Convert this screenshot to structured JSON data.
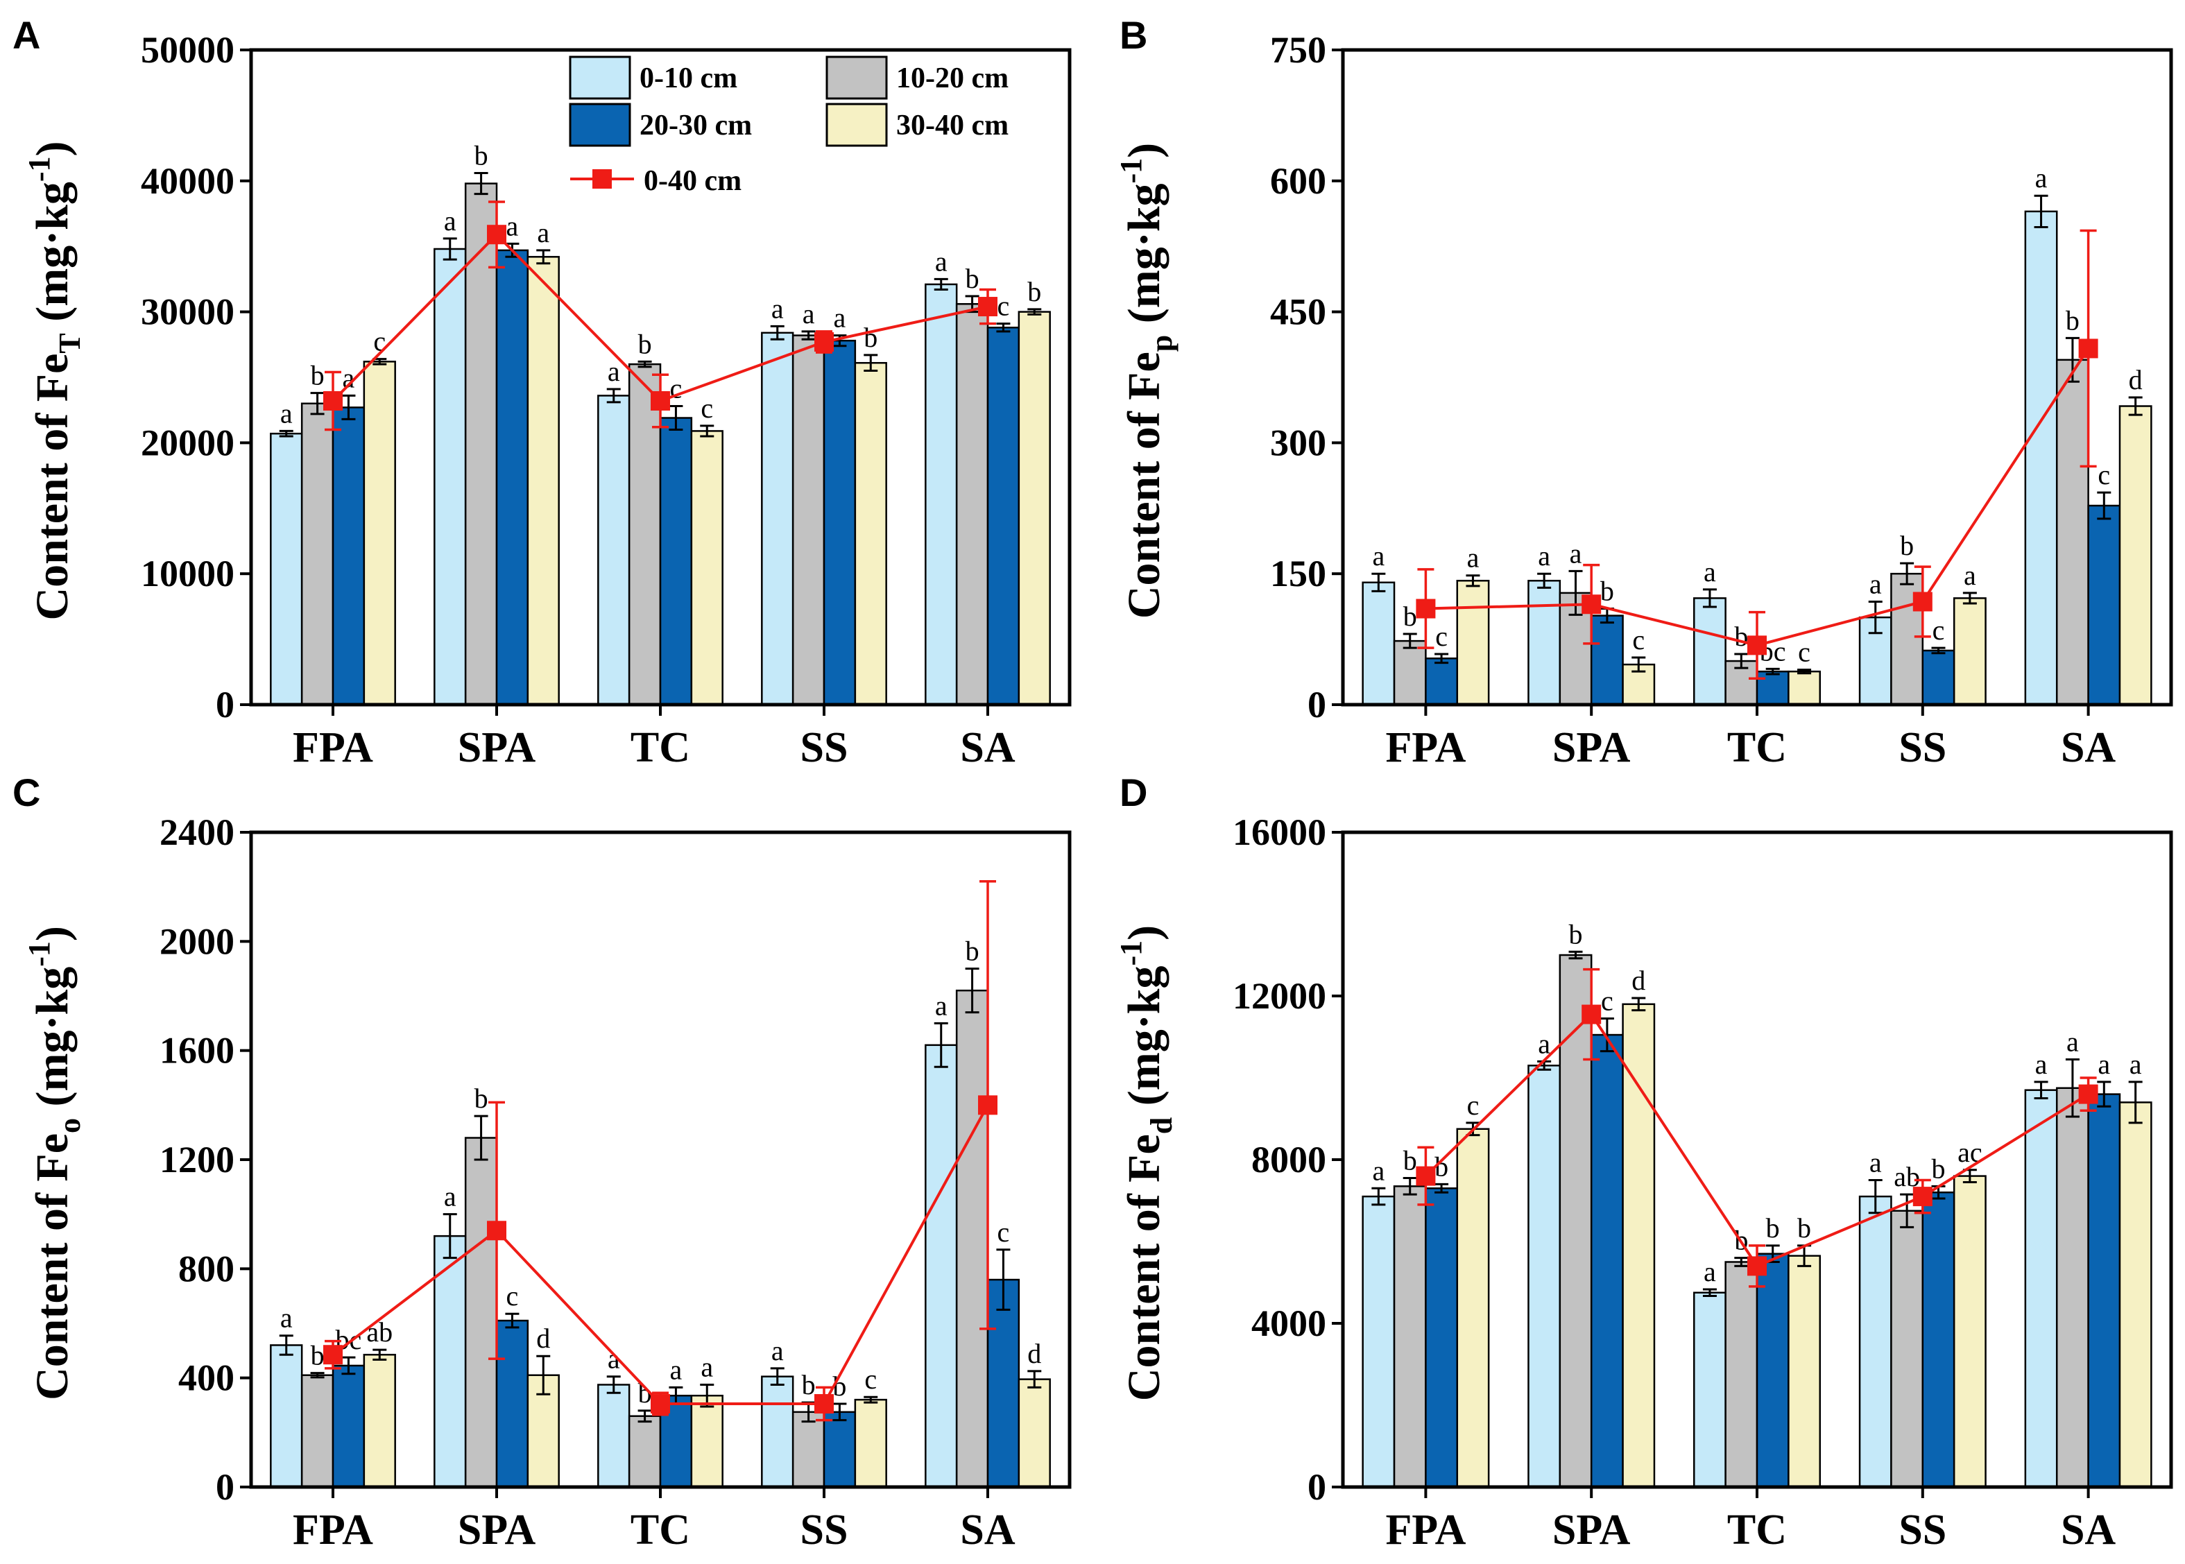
{
  "colors": {
    "s0": "#c5e9f9",
    "s1": "#c2c2c2",
    "s2": "#0a64b1",
    "s3": "#f6f1c4",
    "line": "#ef1c16"
  },
  "legend": {
    "items": [
      "0-10 cm",
      "10-20 cm",
      "20-30 cm",
      "30-40 cm"
    ],
    "line": "0-40 cm"
  },
  "chart_data": [
    {
      "id": "A",
      "type": "bar",
      "panel_label": "A",
      "ylabel_main": "Content of Fe",
      "ylabel_sub": "T",
      "ylabel_unit": " (mg·kg",
      "ylabel_exp": "-1",
      "ylabel_close": ")",
      "ylim": [
        0,
        50000
      ],
      "yticks": [
        0,
        10000,
        20000,
        30000,
        40000,
        50000
      ],
      "categories": [
        "FPA",
        "SPA",
        "TC",
        "SS",
        "SA"
      ],
      "series": [
        {
          "name": "0-10 cm",
          "values": [
            20700,
            34800,
            23600,
            28400,
            32100
          ],
          "errors": [
            200,
            800,
            500,
            500,
            400
          ],
          "letters": [
            "a",
            "a",
            "a",
            "a",
            "a"
          ]
        },
        {
          "name": "10-20 cm",
          "values": [
            23000,
            39800,
            26000,
            28200,
            30600
          ],
          "errors": [
            800,
            800,
            200,
            300,
            600
          ],
          "letters": [
            "b",
            "b",
            "b",
            "a",
            "b"
          ]
        },
        {
          "name": "20-30 cm",
          "values": [
            22700,
            34700,
            21900,
            27800,
            28800
          ],
          "errors": [
            900,
            500,
            900,
            400,
            300
          ],
          "letters": [
            "a",
            "a",
            "c",
            "a",
            "c"
          ]
        },
        {
          "name": "30-40 cm",
          "values": [
            26200,
            34200,
            20900,
            26100,
            30000
          ],
          "errors": [
            200,
            500,
            400,
            600,
            200
          ],
          "letters": [
            "c",
            "a",
            "c",
            "b",
            "b"
          ]
        }
      ],
      "line": {
        "name": "0-40 cm",
        "values": [
          23200,
          35900,
          23200,
          27700,
          30400
        ],
        "errors": [
          2200,
          2500,
          2000,
          800,
          1300
        ]
      }
    },
    {
      "id": "B",
      "type": "bar",
      "panel_label": "B",
      "ylabel_main": "Content of Fe",
      "ylabel_sub": "p",
      "ylabel_unit": " (mg·kg",
      "ylabel_exp": "-1",
      "ylabel_close": ")",
      "ylim": [
        0,
        750
      ],
      "yticks": [
        0,
        150,
        300,
        450,
        600,
        750
      ],
      "categories": [
        "FPA",
        "SPA",
        "TC",
        "SS",
        "SA"
      ],
      "series": [
        {
          "name": "0-10 cm",
          "values": [
            140,
            142,
            122,
            100,
            565
          ],
          "errors": [
            10,
            8,
            10,
            18,
            18
          ],
          "letters": [
            "a",
            "a",
            "a",
            "a",
            "a"
          ]
        },
        {
          "name": "10-20 cm",
          "values": [
            73,
            128,
            50,
            150,
            395
          ],
          "errors": [
            8,
            25,
            8,
            12,
            25
          ],
          "letters": [
            "b",
            "a",
            "b",
            "b",
            "b"
          ]
        },
        {
          "name": "20-30 cm",
          "values": [
            53,
            102,
            38,
            62,
            228
          ],
          "errors": [
            5,
            8,
            3,
            3,
            15
          ],
          "letters": [
            "c",
            "b",
            "bc",
            "c",
            "c"
          ]
        },
        {
          "name": "30-40 cm",
          "values": [
            142,
            46,
            38,
            122,
            342
          ],
          "errors": [
            6,
            8,
            2,
            6,
            10
          ],
          "letters": [
            "a",
            "c",
            "c",
            "a",
            "d"
          ]
        }
      ],
      "line": {
        "name": "0-40 cm",
        "values": [
          110,
          115,
          68,
          118,
          408
        ],
        "errors": [
          45,
          45,
          38,
          40,
          135
        ]
      }
    },
    {
      "id": "C",
      "type": "bar",
      "panel_label": "C",
      "ylabel_main": "Content of Fe",
      "ylabel_sub": "o",
      "ylabel_unit": " (mg·kg",
      "ylabel_exp": "-1",
      "ylabel_close": ")",
      "ylim": [
        0,
        2400
      ],
      "yticks": [
        0,
        400,
        800,
        1200,
        1600,
        2000,
        2400
      ],
      "categories": [
        "FPA",
        "SPA",
        "TC",
        "SS",
        "SA"
      ],
      "series": [
        {
          "name": "0-10 cm",
          "values": [
            520,
            920,
            375,
            405,
            1620
          ],
          "errors": [
            35,
            80,
            30,
            30,
            80
          ],
          "letters": [
            "a",
            "a",
            "a",
            "a",
            "a"
          ]
        },
        {
          "name": "10-20 cm",
          "values": [
            410,
            1280,
            260,
            275,
            1820
          ],
          "errors": [
            8,
            80,
            20,
            35,
            80
          ],
          "letters": [
            "b",
            "b",
            "b",
            "b",
            "b"
          ]
        },
        {
          "name": "20-30 cm",
          "values": [
            445,
            610,
            335,
            275,
            760
          ],
          "errors": [
            30,
            25,
            30,
            30,
            110
          ],
          "letters": [
            "bc",
            "c",
            "a",
            "b",
            "c"
          ]
        },
        {
          "name": "30-40 cm",
          "values": [
            485,
            410,
            335,
            320,
            395
          ],
          "errors": [
            18,
            70,
            40,
            10,
            30
          ],
          "letters": [
            "ab",
            "d",
            "a",
            "c",
            "d"
          ]
        }
      ],
      "line": {
        "name": "0-40 cm",
        "values": [
          485,
          940,
          305,
          305,
          1400
        ],
        "errors": [
          50,
          470,
          40,
          60,
          820
        ]
      }
    },
    {
      "id": "D",
      "type": "bar",
      "panel_label": "D",
      "ylabel_main": "Content of Fe",
      "ylabel_sub": "d",
      "ylabel_unit": " (mg·kg",
      "ylabel_exp": "-1",
      "ylabel_close": ")",
      "ylim": [
        0,
        16000
      ],
      "yticks": [
        0,
        4000,
        8000,
        12000,
        16000
      ],
      "categories": [
        "FPA",
        "SPA",
        "TC",
        "SS",
        "SA"
      ],
      "series": [
        {
          "name": "0-10 cm",
          "values": [
            7100,
            10300,
            4750,
            7100,
            9700
          ],
          "errors": [
            200,
            100,
            80,
            400,
            200
          ],
          "letters": [
            "a",
            "a",
            "a",
            "a",
            "a"
          ]
        },
        {
          "name": "10-20 cm",
          "values": [
            7350,
            13000,
            5500,
            6750,
            9750
          ],
          "errors": [
            200,
            80,
            100,
            400,
            700
          ],
          "letters": [
            "b",
            "b",
            "b",
            "ab",
            "a"
          ]
        },
        {
          "name": "20-30 cm",
          "values": [
            7300,
            11050,
            5700,
            7200,
            9600
          ],
          "errors": [
            100,
            400,
            200,
            150,
            300
          ],
          "letters": [
            "b",
            "c",
            "b",
            "b",
            "a"
          ]
        },
        {
          "name": "30-40 cm",
          "values": [
            8750,
            11800,
            5650,
            7600,
            9400
          ],
          "errors": [
            150,
            150,
            250,
            150,
            500
          ],
          "letters": [
            "c",
            "d",
            "b",
            "ac",
            "a"
          ]
        }
      ],
      "line": {
        "name": "0-40 cm",
        "values": [
          7600,
          11550,
          5400,
          7100,
          9600
        ],
        "errors": [
          700,
          1100,
          500,
          400,
          400
        ]
      }
    }
  ]
}
